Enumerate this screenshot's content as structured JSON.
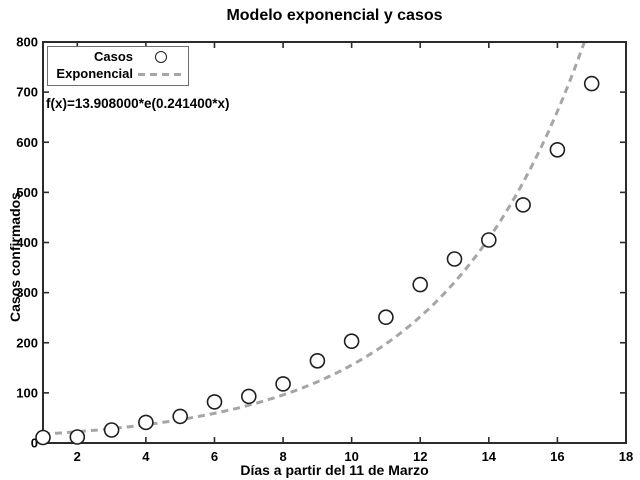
{
  "chart_data": {
    "type": "scatter",
    "title": "Modelo exponencial y casos",
    "annotation": "f(x)=13.908000*e(0.241400*x)",
    "xlabel": "Días a partir del 11 de Marzo",
    "ylabel": "Casos confirmados",
    "xlim": [
      1,
      18
    ],
    "ylim": [
      0,
      800
    ],
    "xticks": [
      2,
      4,
      6,
      8,
      10,
      12,
      14,
      16,
      18
    ],
    "yticks": [
      0,
      100,
      200,
      300,
      400,
      500,
      600,
      700,
      800
    ],
    "grid": false,
    "legend_position": "top-left",
    "series": [
      {
        "name": "Casos",
        "type": "scatter",
        "marker": "circle",
        "x": [
          1,
          2,
          3,
          4,
          5,
          6,
          7,
          8,
          9,
          10,
          11,
          12,
          13,
          14,
          15,
          16,
          17
        ],
        "y": [
          11,
          12,
          26,
          41,
          53,
          82,
          93,
          118,
          164,
          203,
          251,
          316,
          367,
          405,
          475,
          585,
          717
        ]
      },
      {
        "name": "Exponencial",
        "type": "line",
        "style": "dashed",
        "model": "a*e^(b*x)",
        "a": 13.908,
        "b": 0.2414
      }
    ],
    "colors": {
      "axis": "#2b2b2b",
      "marker": "#1f1f1f",
      "model_line": "#a6a6a6",
      "legend_border": "#6e6e6e",
      "text": "#000000",
      "background": "#ffffff"
    }
  }
}
